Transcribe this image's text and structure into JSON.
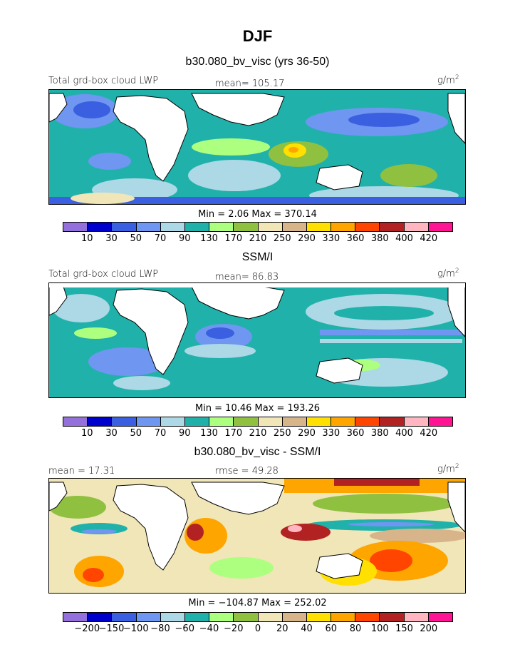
{
  "figure": {
    "title": "DJF",
    "subtitle": "b30.080_bv_visc (yrs 36-50)"
  },
  "colors": {
    "lwp_palette": [
      "#9370DB",
      "#0000CD",
      "#3A5FE0",
      "#6F96F0",
      "#ADD8E6",
      "#20B2AA",
      "#ADFF7F",
      "#90C040",
      "#F0E6B8",
      "#D8B48A",
      "#FFE000",
      "#FFA500",
      "#FF4500",
      "#B22222",
      "#FFB6C1",
      "#FF1493"
    ],
    "diff_palette": [
      "#9370DB",
      "#0000CD",
      "#3A5FE0",
      "#6F96F0",
      "#ADD8E6",
      "#20B2AA",
      "#ADFF7F",
      "#90C040",
      "#F0E6B8",
      "#D8B48A",
      "#FFE000",
      "#FFA500",
      "#FF4500",
      "#B22222",
      "#FFB6C1",
      "#FF1493"
    ]
  },
  "chart_data": [
    {
      "type": "heatmap",
      "id": "model",
      "header_left": "Total grd-box cloud LWP",
      "header_mid": "mean= 105.17",
      "units_base": "g/m",
      "units_exp": "2",
      "mean": 105.17,
      "min": 2.06,
      "max": 370.14,
      "minmax_text": "Min =    2.06 Max = 370.14",
      "levels": [
        "10",
        "30",
        "50",
        "70",
        "90",
        "130",
        "170",
        "210",
        "250",
        "290",
        "330",
        "360",
        "380",
        "400",
        "420"
      ]
    },
    {
      "type": "heatmap",
      "id": "obs",
      "subtitle": "SSM/I",
      "header_left": "Total grd-box cloud LWP",
      "header_mid": "mean=  86.83",
      "units_base": "g/m",
      "units_exp": "2",
      "mean": 86.83,
      "min": 10.46,
      "max": 193.26,
      "minmax_text": "Min =   10.46 Max = 193.26",
      "levels": [
        "10",
        "30",
        "50",
        "70",
        "90",
        "130",
        "170",
        "210",
        "250",
        "290",
        "330",
        "360",
        "380",
        "400",
        "420"
      ]
    },
    {
      "type": "heatmap",
      "id": "diff",
      "subtitle": "b30.080_bv_visc - SSM/I",
      "header_left": "mean =   17.31",
      "header_mid": "rmse =   49.28",
      "units_base": "g/m",
      "units_exp": "2",
      "mean": 17.31,
      "rmse": 49.28,
      "min": -104.87,
      "max": 252.02,
      "minmax_text": "Min = −104.87 Max = 252.02",
      "levels": [
        "−200",
        "−150",
        "−100",
        "−80",
        "−60",
        "−40",
        "−20",
        "0",
        "20",
        "40",
        "60",
        "80",
        "100",
        "150",
        "200"
      ]
    }
  ]
}
